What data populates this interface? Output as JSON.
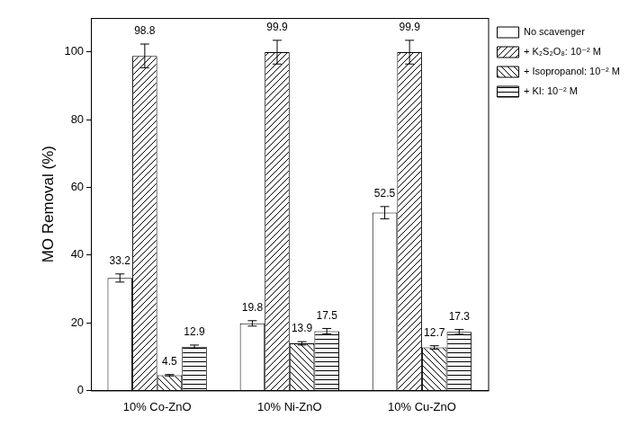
{
  "chart_data": {
    "type": "bar",
    "y_label": "MO Removal (%)",
    "categories": [
      "10% Co-ZnO",
      "10% Ni-ZnO",
      "10% Cu-ZnO"
    ],
    "series": [
      {
        "name": "No scavenger",
        "color": "#000000",
        "values": [
          33.2,
          19.8,
          52.5
        ],
        "errors": [
          1.2,
          0.8,
          1.8
        ]
      },
      {
        "name": "+ K₂S₂O₈: 10⁻² M",
        "color": "#000000",
        "values": [
          98.8,
          99.9,
          99.9
        ],
        "errors": [
          3.5,
          3.5,
          3.5
        ]
      },
      {
        "name": "+ Isopropanol: 10⁻² M",
        "color": "#000000",
        "values": [
          4.5,
          13.9,
          12.7
        ],
        "errors": [
          0.2,
          0.5,
          0.5
        ]
      },
      {
        "name": "+ KI: 10⁻² M",
        "color": "#000000",
        "values": [
          12.9,
          17.5,
          17.3
        ],
        "errors": [
          0.5,
          0.8,
          0.7
        ]
      }
    ],
    "ylim": [
      0,
      110
    ],
    "yticks": [
      0,
      20,
      40,
      60,
      80,
      100
    ],
    "grid": false,
    "legend": "top-right",
    "data_labels": true
  }
}
